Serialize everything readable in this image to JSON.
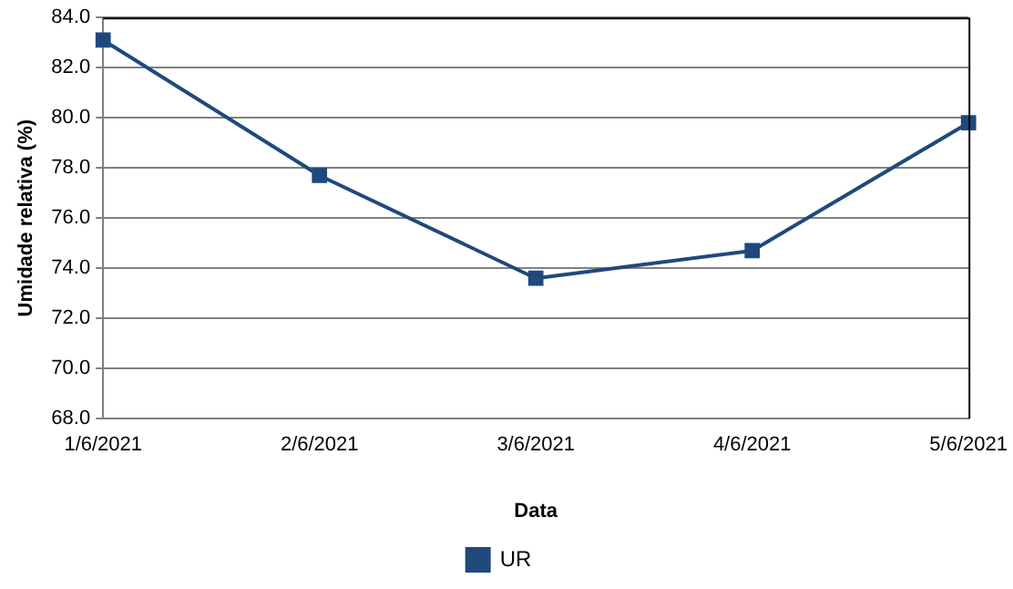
{
  "chart_data": {
    "type": "line",
    "xlabel": "Data",
    "ylabel": "Umidade relativa (%)",
    "categories": [
      "1/6/2021",
      "2/6/2021",
      "3/6/2021",
      "4/6/2021",
      "5/6/2021"
    ],
    "series": [
      {
        "name": "UR",
        "color": "#1f497d",
        "values": [
          83.1,
          77.7,
          73.6,
          74.7,
          79.8
        ]
      }
    ],
    "ylim": [
      68,
      84
    ],
    "yticks": [
      {
        "value": 68,
        "label": "68.0"
      },
      {
        "value": 70,
        "label": "70.0"
      },
      {
        "value": 72,
        "label": "72.0"
      },
      {
        "value": 74,
        "label": "74.0"
      },
      {
        "value": 76,
        "label": "76.0"
      },
      {
        "value": 78,
        "label": "78.0"
      },
      {
        "value": 80,
        "label": "80.0"
      },
      {
        "value": 82,
        "label": "82.0"
      },
      {
        "value": 84,
        "label": "84.0"
      }
    ],
    "grid": "y",
    "legend": "bottom",
    "marker": "square",
    "line_style": "solid"
  }
}
